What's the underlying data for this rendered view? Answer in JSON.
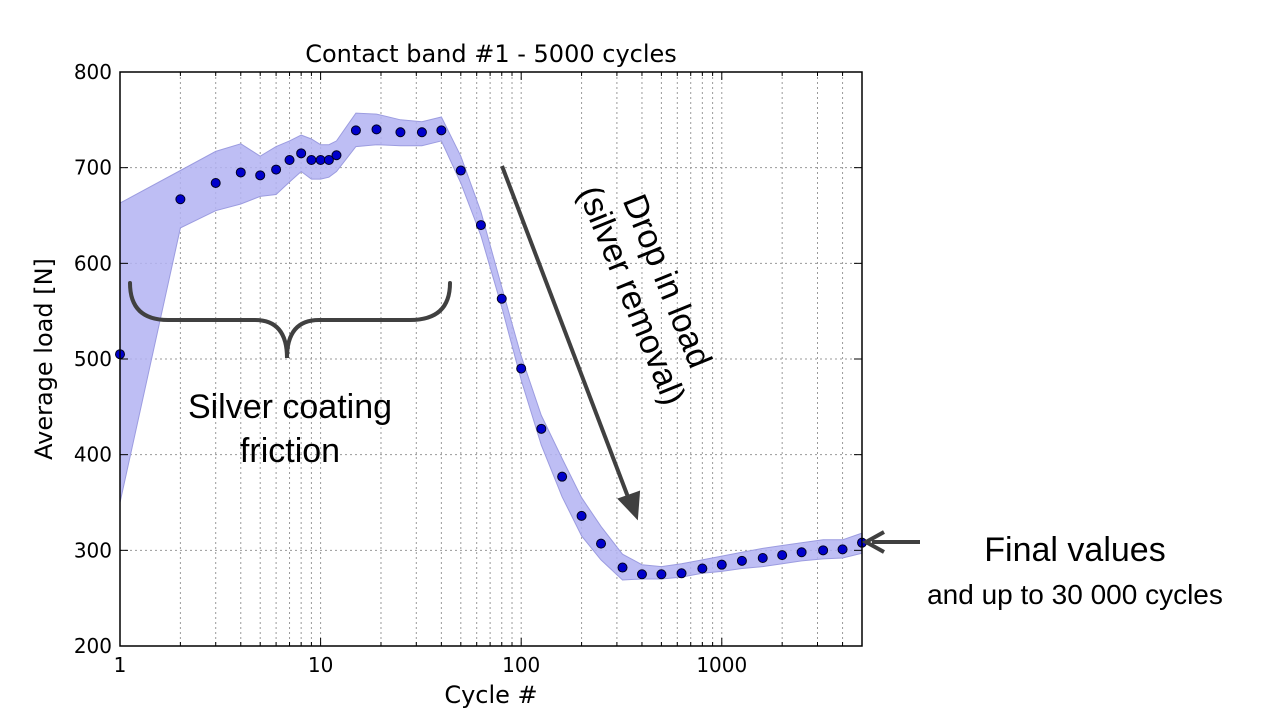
{
  "chart_data": {
    "type": "scatter",
    "title": "Contact band #1 - 5000 cycles",
    "xlabel": "Cycle #",
    "ylabel": "Average load [N]",
    "xscale": "log",
    "xlim": [
      1,
      5000
    ],
    "ylim": [
      200,
      800
    ],
    "xticks": [
      1,
      10,
      100,
      1000
    ],
    "xtick_labels": [
      "1",
      "10",
      "100",
      "1000"
    ],
    "yticks": [
      200,
      300,
      400,
      500,
      600,
      700,
      800
    ],
    "ytick_labels": [
      "200",
      "300",
      "400",
      "500",
      "600",
      "700",
      "800"
    ],
    "grid": true,
    "point_color": "#0000cc",
    "band_color": "#b3b3f2",
    "series": [
      {
        "x": [
          1,
          2,
          3,
          4,
          5,
          6,
          7,
          8,
          9,
          10,
          11,
          12,
          15,
          19,
          25,
          32,
          40,
          50,
          63,
          80,
          100,
          126,
          160,
          200,
          250,
          320,
          400,
          500,
          630,
          800,
          1000,
          1260,
          1600,
          2000,
          2500,
          3200,
          4000,
          5000
        ],
        "values": [
          505,
          667,
          684,
          695,
          692,
          698,
          708,
          715,
          708,
          708,
          708,
          713,
          739,
          740,
          737,
          737,
          739,
          697,
          640,
          563,
          490,
          427,
          377,
          336,
          307,
          282,
          275,
          275,
          276,
          281,
          285,
          289,
          292,
          295,
          298,
          300,
          301,
          308
        ],
        "band_lower": [
          350,
          637,
          655,
          662,
          670,
          672,
          685,
          696,
          688,
          688,
          690,
          696,
          722,
          724,
          723,
          723,
          728,
          684,
          629,
          554,
          478,
          410,
          356,
          315,
          290,
          269,
          270,
          270,
          272,
          276,
          278,
          281,
          283,
          286,
          289,
          291,
          292,
          297
        ],
        "band_upper": [
          663,
          697,
          717,
          725,
          712,
          722,
          728,
          734,
          730,
          724,
          724,
          728,
          757,
          756,
          750,
          748,
          753,
          712,
          654,
          575,
          503,
          441,
          396,
          355,
          325,
          296,
          285,
          283,
          286,
          290,
          294,
          298,
          302,
          305,
          308,
          311,
          311,
          318
        ]
      }
    ]
  },
  "annotations": {
    "silver_line1": "Silver coating",
    "silver_line2": "friction",
    "drop_line1": "Drop in load",
    "drop_line2": "(silver removal)",
    "final_line1": "Final values",
    "final_line2": "and up to 30 000 cycles"
  }
}
